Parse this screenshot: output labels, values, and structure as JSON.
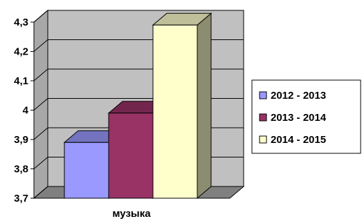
{
  "chart_data": {
    "type": "bar",
    "categories": [
      "музыка"
    ],
    "series": [
      {
        "name": "2012 - 2013",
        "values": [
          3.89
        ],
        "color": "#9999FF"
      },
      {
        "name": "2013 - 2014",
        "values": [
          3.99
        ],
        "color": "#993366"
      },
      {
        "name": "2014 - 2015",
        "values": [
          4.29
        ],
        "color": "#FFFFCC"
      }
    ],
    "ylim": [
      3.7,
      4.3
    ],
    "yticks": [
      "3,7",
      "3,8",
      "3,9",
      "4",
      "4,1",
      "4,2",
      "4,3"
    ],
    "grid": true,
    "three_d": true,
    "wall_color": "#C0C0C0",
    "legend_position": "right"
  }
}
